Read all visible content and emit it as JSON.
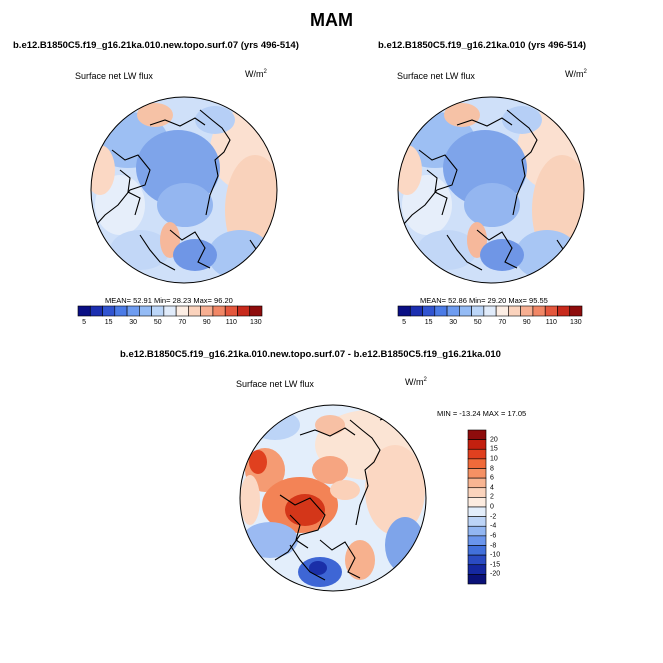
{
  "figure": {
    "title": "MAM"
  },
  "panels": [
    {
      "title": "b.e12.B1850C5.f19_g16.21ka.010.new.topo.surf.07 (yrs 496-514)",
      "variable": "Surface net LW flux",
      "units": "W/m",
      "units_sup": "2",
      "stats": "MEAN=  52.91  Min=  28.23  Max=  96.20",
      "colorbar_labels": [
        "5",
        "15",
        "30",
        "50",
        "70",
        "90",
        "110",
        "130"
      ],
      "colorbar_colors": [
        "#0a0f84",
        "#1c2fb0",
        "#3154d0",
        "#4b7be6",
        "#6e9cf0",
        "#94bbf5",
        "#bcd6f8",
        "#e1ecfb",
        "#fdeee4",
        "#fbd3bd",
        "#f7af92",
        "#f18766",
        "#e4573d",
        "#c82a1c",
        "#8e0c0c"
      ]
    },
    {
      "title": "b.e12.B1850C5.f19_g16.21ka.010 (yrs 496-514)",
      "variable": "Surface net LW flux",
      "units": "W/m",
      "units_sup": "2",
      "stats": "MEAN=  52.86  Min=  29.20  Max=  95.55",
      "colorbar_labels": [
        "5",
        "15",
        "30",
        "50",
        "70",
        "90",
        "110",
        "130"
      ],
      "colorbar_colors": [
        "#0a0f84",
        "#1c2fb0",
        "#3154d0",
        "#4b7be6",
        "#6e9cf0",
        "#94bbf5",
        "#bcd6f8",
        "#e1ecfb",
        "#fdeee4",
        "#fbd3bd",
        "#f7af92",
        "#f18766",
        "#e4573d",
        "#c82a1c",
        "#8e0c0c"
      ]
    },
    {
      "title": "b.e12.B1850C5.f19_g16.21ka.010.new.topo.surf.07 - b.e12.B1850C5.f19_g16.21ka.010",
      "variable": "Surface net LW flux",
      "units": "W/m",
      "units_sup": "2",
      "stats": "MIN = -13.24  MAX =  17.05",
      "colorbar_labels": [
        "20",
        "15",
        "10",
        "8",
        "6",
        "4",
        "2",
        "0",
        "-2",
        "-4",
        "-6",
        "-8",
        "-10",
        "-15",
        "-20"
      ],
      "colorbar_colors": [
        "#8e0c0c",
        "#c3200f",
        "#e0401f",
        "#f06a3a",
        "#f59164",
        "#f8b592",
        "#fbd4bd",
        "#fdece0",
        "#e3eefb",
        "#bcd4f7",
        "#92b6f2",
        "#6a95ec",
        "#4270db",
        "#2a4bc2",
        "#1528a0",
        "#0a1178"
      ]
    }
  ]
}
